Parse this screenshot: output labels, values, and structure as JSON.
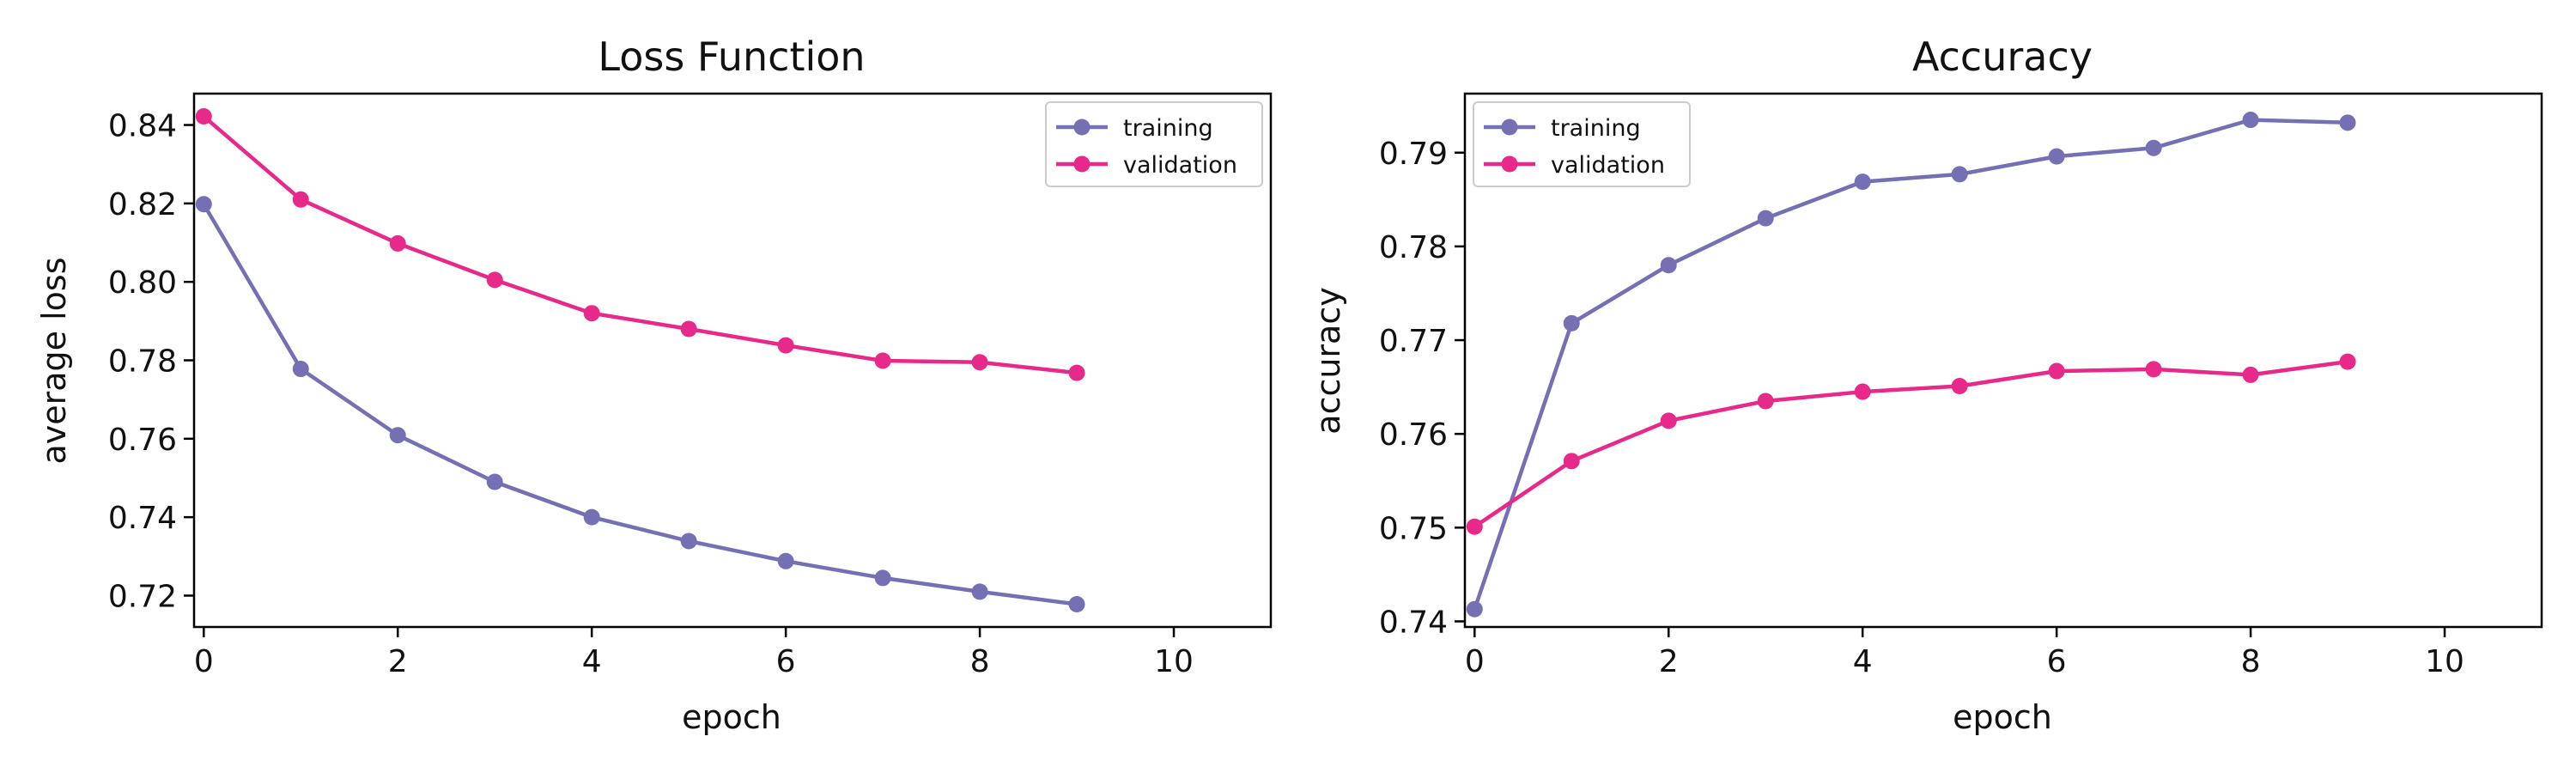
{
  "colors": {
    "training": "#7570b3",
    "validation": "#e7298a"
  },
  "chart_data": [
    {
      "type": "line",
      "title": "Loss Function",
      "xlabel": "epoch",
      "ylabel": "average loss",
      "xlim": [
        -0.1,
        11
      ],
      "ylim": [
        0.712,
        0.848
      ],
      "xticks": [
        0,
        2,
        4,
        6,
        8,
        10
      ],
      "yticks": [
        0.72,
        0.74,
        0.76,
        0.78,
        0.8,
        0.82,
        0.84
      ],
      "ytick_labels": [
        "0.72",
        "0.74",
        "0.76",
        "0.78",
        "0.80",
        "0.82",
        "0.84"
      ],
      "legend": "top-right",
      "grid": false,
      "x": [
        0,
        1,
        2,
        3,
        4,
        5,
        6,
        7,
        8,
        9
      ],
      "series": [
        {
          "name": "training",
          "values": [
            0.8198,
            0.7778,
            0.7609,
            0.749,
            0.74,
            0.7339,
            0.7288,
            0.7245,
            0.721,
            0.7178
          ]
        },
        {
          "name": "validation",
          "values": [
            0.8422,
            0.821,
            0.8098,
            0.8005,
            0.792,
            0.788,
            0.7838,
            0.7799,
            0.7795,
            0.7768
          ]
        }
      ]
    },
    {
      "type": "line",
      "title": "Accuracy",
      "xlabel": "epoch",
      "ylabel": "accuracy",
      "xlim": [
        -0.1,
        11
      ],
      "ylim": [
        0.7394,
        0.7963
      ],
      "xticks": [
        0,
        2,
        4,
        6,
        8,
        10
      ],
      "yticks": [
        0.74,
        0.75,
        0.76,
        0.77,
        0.78,
        0.79
      ],
      "ytick_labels": [
        "0.74",
        "0.75",
        "0.76",
        "0.77",
        "0.78",
        "0.79"
      ],
      "legend": "top-left",
      "grid": false,
      "x": [
        0,
        1,
        2,
        3,
        4,
        5,
        6,
        7,
        8,
        9
      ],
      "series": [
        {
          "name": "training",
          "values": [
            0.7413,
            0.7718,
            0.778,
            0.783,
            0.7869,
            0.7877,
            0.7896,
            0.7905,
            0.7935,
            0.7932
          ]
        },
        {
          "name": "validation",
          "values": [
            0.7501,
            0.7571,
            0.7614,
            0.7635,
            0.7645,
            0.7651,
            0.7667,
            0.7669,
            0.7663,
            0.7677
          ]
        }
      ]
    }
  ]
}
